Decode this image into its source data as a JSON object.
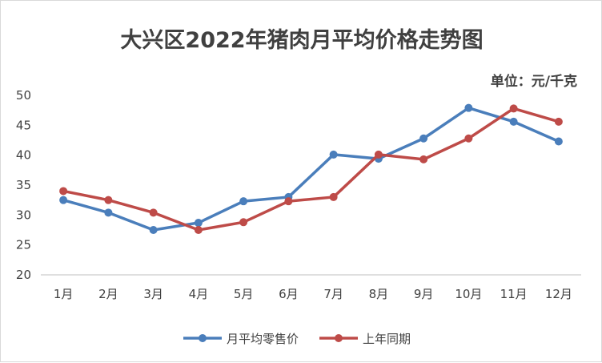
{
  "chart_data": {
    "type": "line",
    "title": "大兴区2022年猪肉月平均价格走势图",
    "unit_label": "单位：元/千克",
    "categories": [
      "1月",
      "2月",
      "3月",
      "4月",
      "5月",
      "6月",
      "7月",
      "8月",
      "9月",
      "10月",
      "11月",
      "12月"
    ],
    "ylim": [
      20,
      50
    ],
    "yticks": [
      20,
      25,
      30,
      35,
      40,
      45,
      50
    ],
    "grid": false,
    "legend_position": "bottom",
    "series": [
      {
        "name": "月平均零售价",
        "color": "#4a7ebb",
        "values": [
          32.5,
          30.4,
          27.5,
          28.7,
          32.3,
          33.0,
          40.1,
          39.4,
          42.8,
          47.9,
          45.6,
          42.3
        ]
      },
      {
        "name": "上年同期",
        "color": "#be4b48",
        "values": [
          34.0,
          32.5,
          30.4,
          27.5,
          28.8,
          32.3,
          33.0,
          40.1,
          39.3,
          42.8,
          47.8,
          45.6
        ]
      }
    ]
  }
}
